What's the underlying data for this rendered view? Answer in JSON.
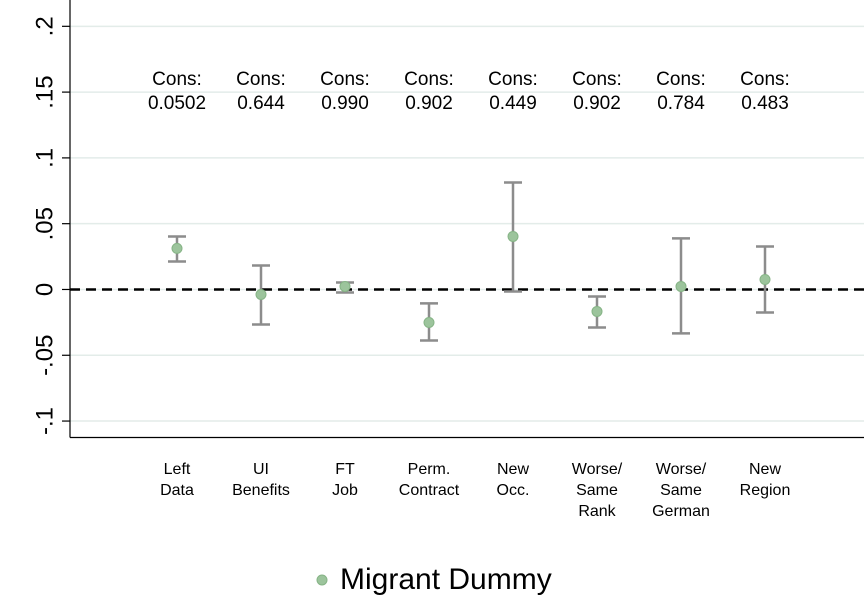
{
  "chart_data": {
    "type": "coefplot",
    "categories": [
      "Left\nData",
      "UI\nBenefits",
      "FT\nJob",
      "Perm.\nContract",
      "New\nOcc.",
      "Worse/\nSame\nRank",
      "Worse/\nSame\nGerman",
      "New\nRegion"
    ],
    "annotations": [
      "Cons:\n0.0502",
      "Cons:\n0.644",
      "Cons:\n0.990",
      "Cons:\n0.902",
      "Cons:\n0.449",
      "Cons:\n0.902",
      "Cons:\n0.784",
      "Cons:\n0.483"
    ],
    "series": [
      {
        "name": "Migrant Dummy",
        "color": "#9cc49c",
        "values": [
          0.0312,
          -0.0038,
          0.0023,
          -0.0251,
          0.0403,
          -0.0167,
          0.0023,
          0.0076
        ],
        "ci_low": [
          0.0213,
          -0.0266,
          -0.0023,
          -0.0388,
          -0.0015,
          -0.0289,
          -0.0334,
          -0.0175
        ],
        "ci_high": [
          0.0403,
          0.0182,
          0.0053,
          -0.0106,
          0.0813,
          -0.0053,
          0.0388,
          0.0327
        ]
      }
    ],
    "ci_color": "#8c8c8c",
    "ylim": [
      -0.1125,
      0.22
    ],
    "yticks": [
      {
        "value": -0.1,
        "label": "-.1"
      },
      {
        "value": -0.05,
        "label": "-.05"
      },
      0,
      {
        "value": 0.05,
        "label": ".05"
      },
      {
        "value": 0.1,
        "label": ".1"
      },
      {
        "value": 0.15,
        "label": ".15"
      },
      {
        "value": 0.2,
        "label": ".2"
      }
    ],
    "reference_line": 0,
    "grid": true,
    "legend": "bottom"
  }
}
